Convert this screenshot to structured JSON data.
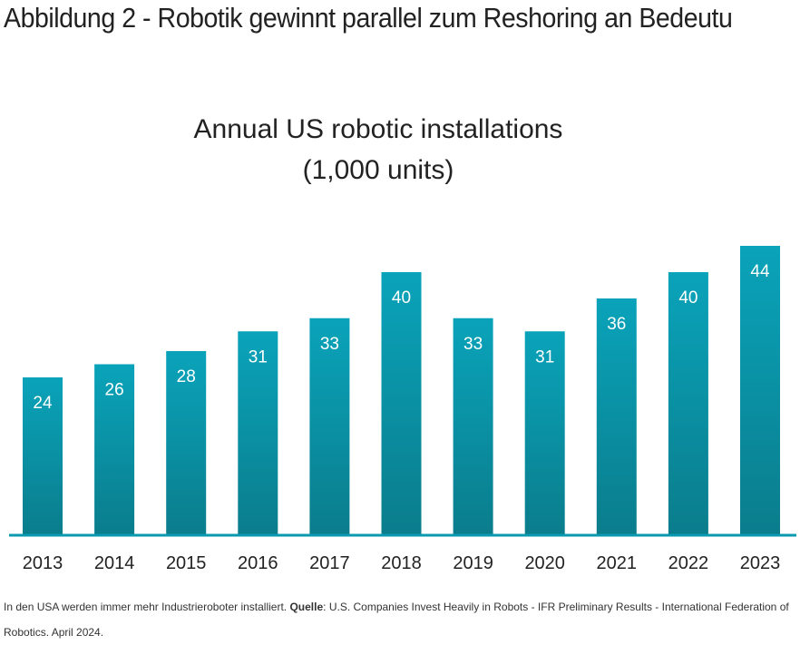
{
  "heading": "Abbildung 2 - Robotik gewinnt parallel zum Reshoring an Bedeutu",
  "caption": {
    "text": "In den USA werden immer mehr Industrieroboter installiert. ",
    "source_label": "Quelle",
    "source_text": ": U.S. Companies Invest Heavily in Robots - IFR Preliminary Results - International Federation of Robotics. April 2024."
  },
  "chart_data": {
    "type": "bar",
    "title": "Annual US robotic installations",
    "subtitle": "(1,000 units)",
    "categories": [
      "2013",
      "2014",
      "2015",
      "2016",
      "2017",
      "2018",
      "2019",
      "2020",
      "2021",
      "2022",
      "2023"
    ],
    "values": [
      24,
      26,
      28,
      31,
      33,
      40,
      33,
      31,
      36,
      40,
      44
    ],
    "ylim": [
      0,
      44
    ],
    "grid": false,
    "data_labels": true,
    "colors": {
      "bar_top": "#0aa3ba",
      "bar_bottom": "#0a7d8c",
      "axis": "#0a9ab0"
    }
  }
}
